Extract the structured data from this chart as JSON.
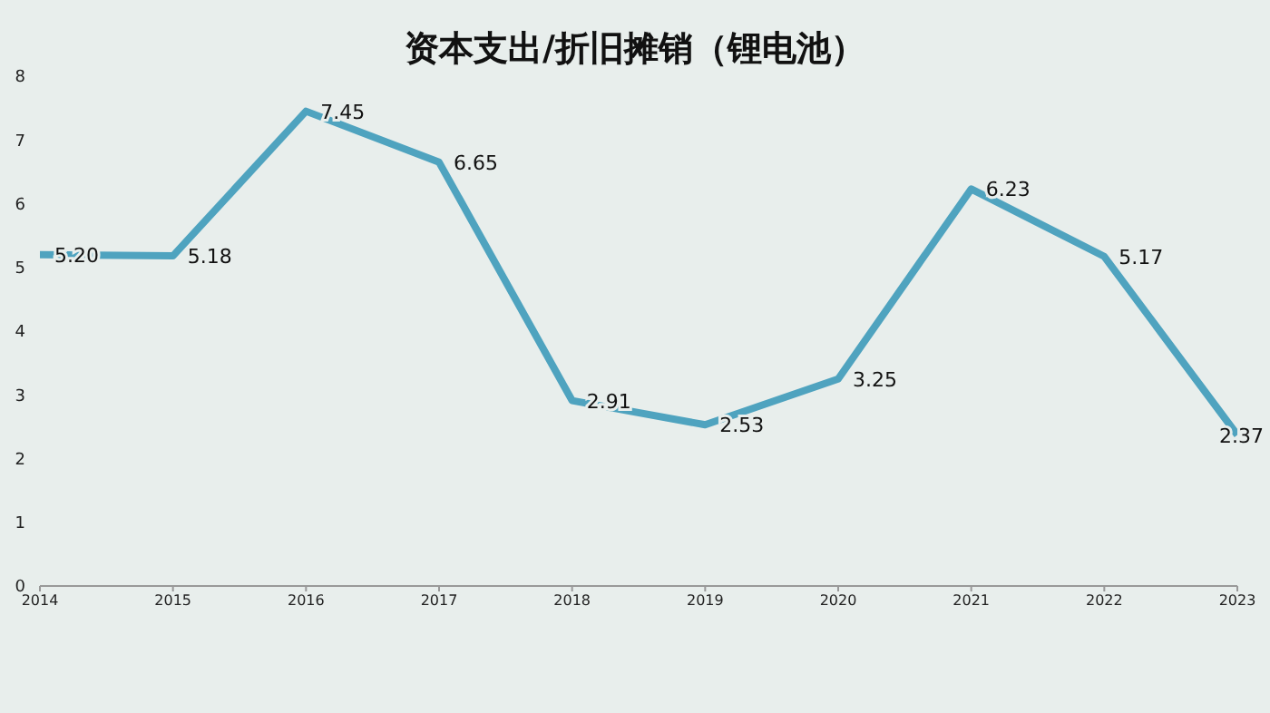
{
  "chart_data": {
    "type": "line",
    "title": "资本支出/折旧摊销（锂电池）",
    "categories": [
      "2014",
      "2015",
      "2016",
      "2017",
      "2018",
      "2019",
      "2020",
      "2021",
      "2022",
      "2023"
    ],
    "series": [
      {
        "color": "#4fa3bf",
        "values": [
          5.2,
          5.18,
          7.45,
          6.65,
          2.91,
          2.53,
          3.25,
          6.23,
          5.17,
          2.37
        ],
        "value_labels": [
          "5.20",
          "5.18",
          "7.45",
          "6.65",
          "2.91",
          "2.53",
          "3.25",
          "6.23",
          "5.17",
          "2.37"
        ]
      }
    ],
    "ylim": [
      0,
      8
    ],
    "yticks": [
      0,
      1,
      2,
      3,
      4,
      5,
      6,
      7,
      8
    ],
    "grid": false,
    "legend": false,
    "marker": "none",
    "line_style": "solid"
  }
}
